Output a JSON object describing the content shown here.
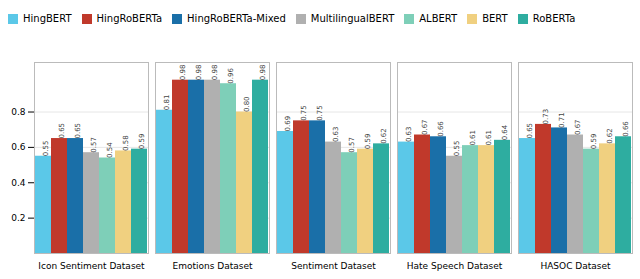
{
  "chart_data": {
    "type": "bar",
    "categories": [
      "Icon Sentiment Dataset",
      "Emotions Dataset",
      "Sentiment Dataset",
      "Hate Speech Dataset",
      "HASOC Dataset"
    ],
    "series": [
      {
        "name": "HingBERT",
        "color": "#5bc8e8",
        "values": [
          0.55,
          0.81,
          0.69,
          0.63,
          0.65
        ],
        "value_labels": [
          "0.55",
          "0.81",
          "0.69",
          "0.63",
          "0.65"
        ]
      },
      {
        "name": "HingRoBERTa",
        "color": "#c0392b",
        "values": [
          0.65,
          0.98,
          0.75,
          0.67,
          0.73
        ],
        "value_labels": [
          "0.65",
          "0.98",
          "0.75",
          "0.67",
          "0.73"
        ]
      },
      {
        "name": "HingRoBERTa-Mixed",
        "color": "#1a6fa8",
        "values": [
          0.65,
          0.98,
          0.75,
          0.66,
          0.71
        ],
        "value_labels": [
          "0.65",
          "0.98",
          "0.75",
          "0.66",
          "0.71"
        ]
      },
      {
        "name": "MultilingualBERT",
        "color": "#b0b0b0",
        "values": [
          0.57,
          0.98,
          0.63,
          0.55,
          0.67
        ],
        "value_labels": [
          "0.57",
          "0.98",
          "0.63",
          "0.55",
          "0.67"
        ]
      },
      {
        "name": "ALBERT",
        "color": "#7ecfb8",
        "values": [
          0.54,
          0.96,
          0.57,
          0.61,
          0.59
        ],
        "value_labels": [
          "0.54",
          "0.96",
          "0.57",
          "0.61",
          "0.59"
        ]
      },
      {
        "name": "BERT",
        "color": "#f0d080",
        "values": [
          0.58,
          0.8,
          0.59,
          0.61,
          0.62
        ],
        "value_labels": [
          "0.58",
          "0.80",
          "0.59",
          "0.61",
          "0.62"
        ]
      },
      {
        "name": "RoBERTa",
        "color": "#2eada0",
        "values": [
          0.59,
          0.98,
          0.62,
          0.64,
          0.66
        ],
        "value_labels": [
          "0.59",
          "0.98",
          "0.62",
          "0.64",
          "0.66"
        ]
      }
    ],
    "ylim": [
      0,
      1.08
    ],
    "yticks": [
      0.2,
      0.4,
      0.6,
      0.8
    ],
    "grid": true,
    "legend": "upper left",
    "data_labels": true
  }
}
